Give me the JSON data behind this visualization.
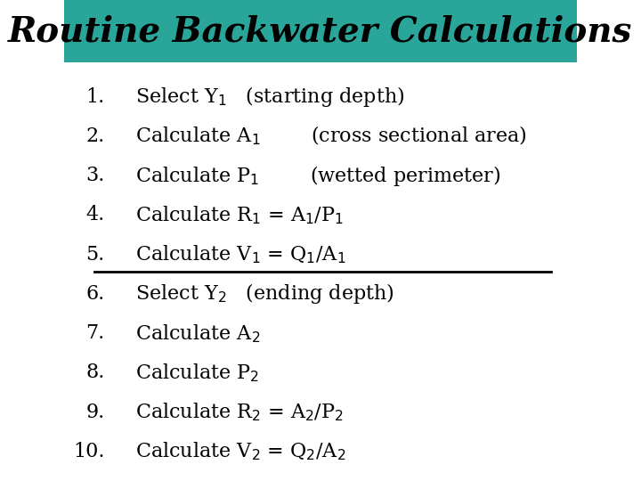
{
  "title": "Routine Backwater Calculations",
  "title_bg_color": "#2aA59A",
  "title_text_color": "#000000",
  "bg_color": "#ffffff",
  "items": [
    {
      "num": "1.",
      "text": "Select Y$_1$   (starting depth)"
    },
    {
      "num": "2.",
      "text": "Calculate A$_1$        (cross sectional area)"
    },
    {
      "num": "3.",
      "text": "Calculate P$_1$        (wetted perimeter)"
    },
    {
      "num": "4.",
      "text": "Calculate R$_1$ = A$_1$/P$_1$"
    },
    {
      "num": "5.",
      "text": "Calculate V$_1$ = Q$_1$/A$_1$"
    },
    {
      "num": "6.",
      "text": "Select Y$_2$   (ending depth)"
    },
    {
      "num": "7.",
      "text": "Calculate A$_2$"
    },
    {
      "num": "8.",
      "text": "Calculate P$_2$"
    },
    {
      "num": "9.",
      "text": "Calculate R$_2$ = A$_2$/P$_2$"
    },
    {
      "num": "10.",
      "text": "Calculate V$_2$ = Q$_2$/A$_2$"
    }
  ],
  "divider_after_item": 4,
  "font_size": 16,
  "title_font_size": 28
}
